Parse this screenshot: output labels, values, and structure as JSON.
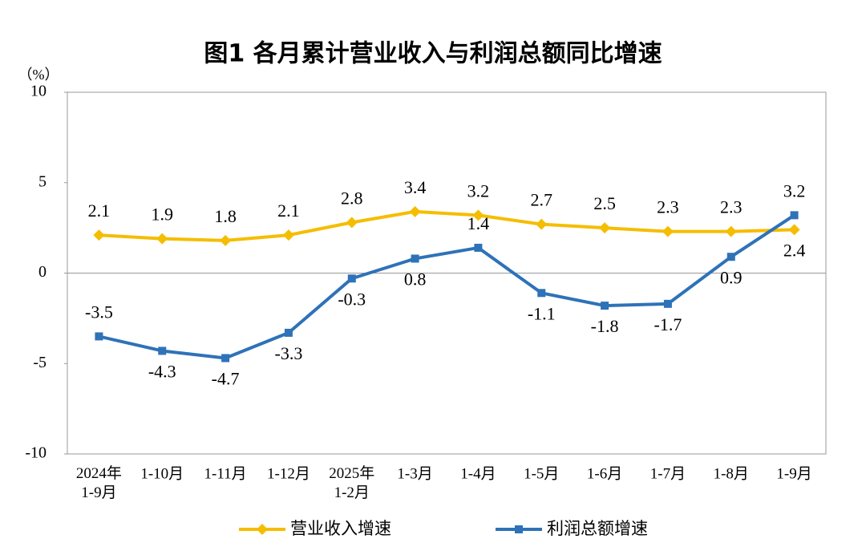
{
  "chart_data": {
    "type": "line",
    "title": "图1  各月累计营业收入与利润总额同比增速",
    "y_unit": "（%）",
    "categories": [
      "2024年\n1-9月",
      "1-10月",
      "1-11月",
      "1-12月",
      "2025年\n1-2月",
      "1-3月",
      "1-4月",
      "1-5月",
      "1-6月",
      "1-7月",
      "1-8月",
      "1-9月"
    ],
    "series": [
      {
        "name": "营业收入增速",
        "color": "#f5bd00",
        "marker": "diamond",
        "values": [
          2.1,
          1.9,
          1.8,
          2.1,
          2.8,
          3.4,
          3.2,
          2.7,
          2.5,
          2.3,
          2.3,
          2.4
        ]
      },
      {
        "name": "利润总额增速",
        "color": "#2e72b8",
        "marker": "square",
        "values": [
          -3.5,
          -4.3,
          -4.7,
          -3.3,
          -0.3,
          0.8,
          1.4,
          -1.1,
          -1.8,
          -1.7,
          0.9,
          3.2
        ]
      }
    ],
    "ylim": [
      -10,
      10
    ],
    "yticks": [
      -10,
      -5,
      0,
      5,
      10
    ],
    "grid": false,
    "legend": "bottom"
  }
}
